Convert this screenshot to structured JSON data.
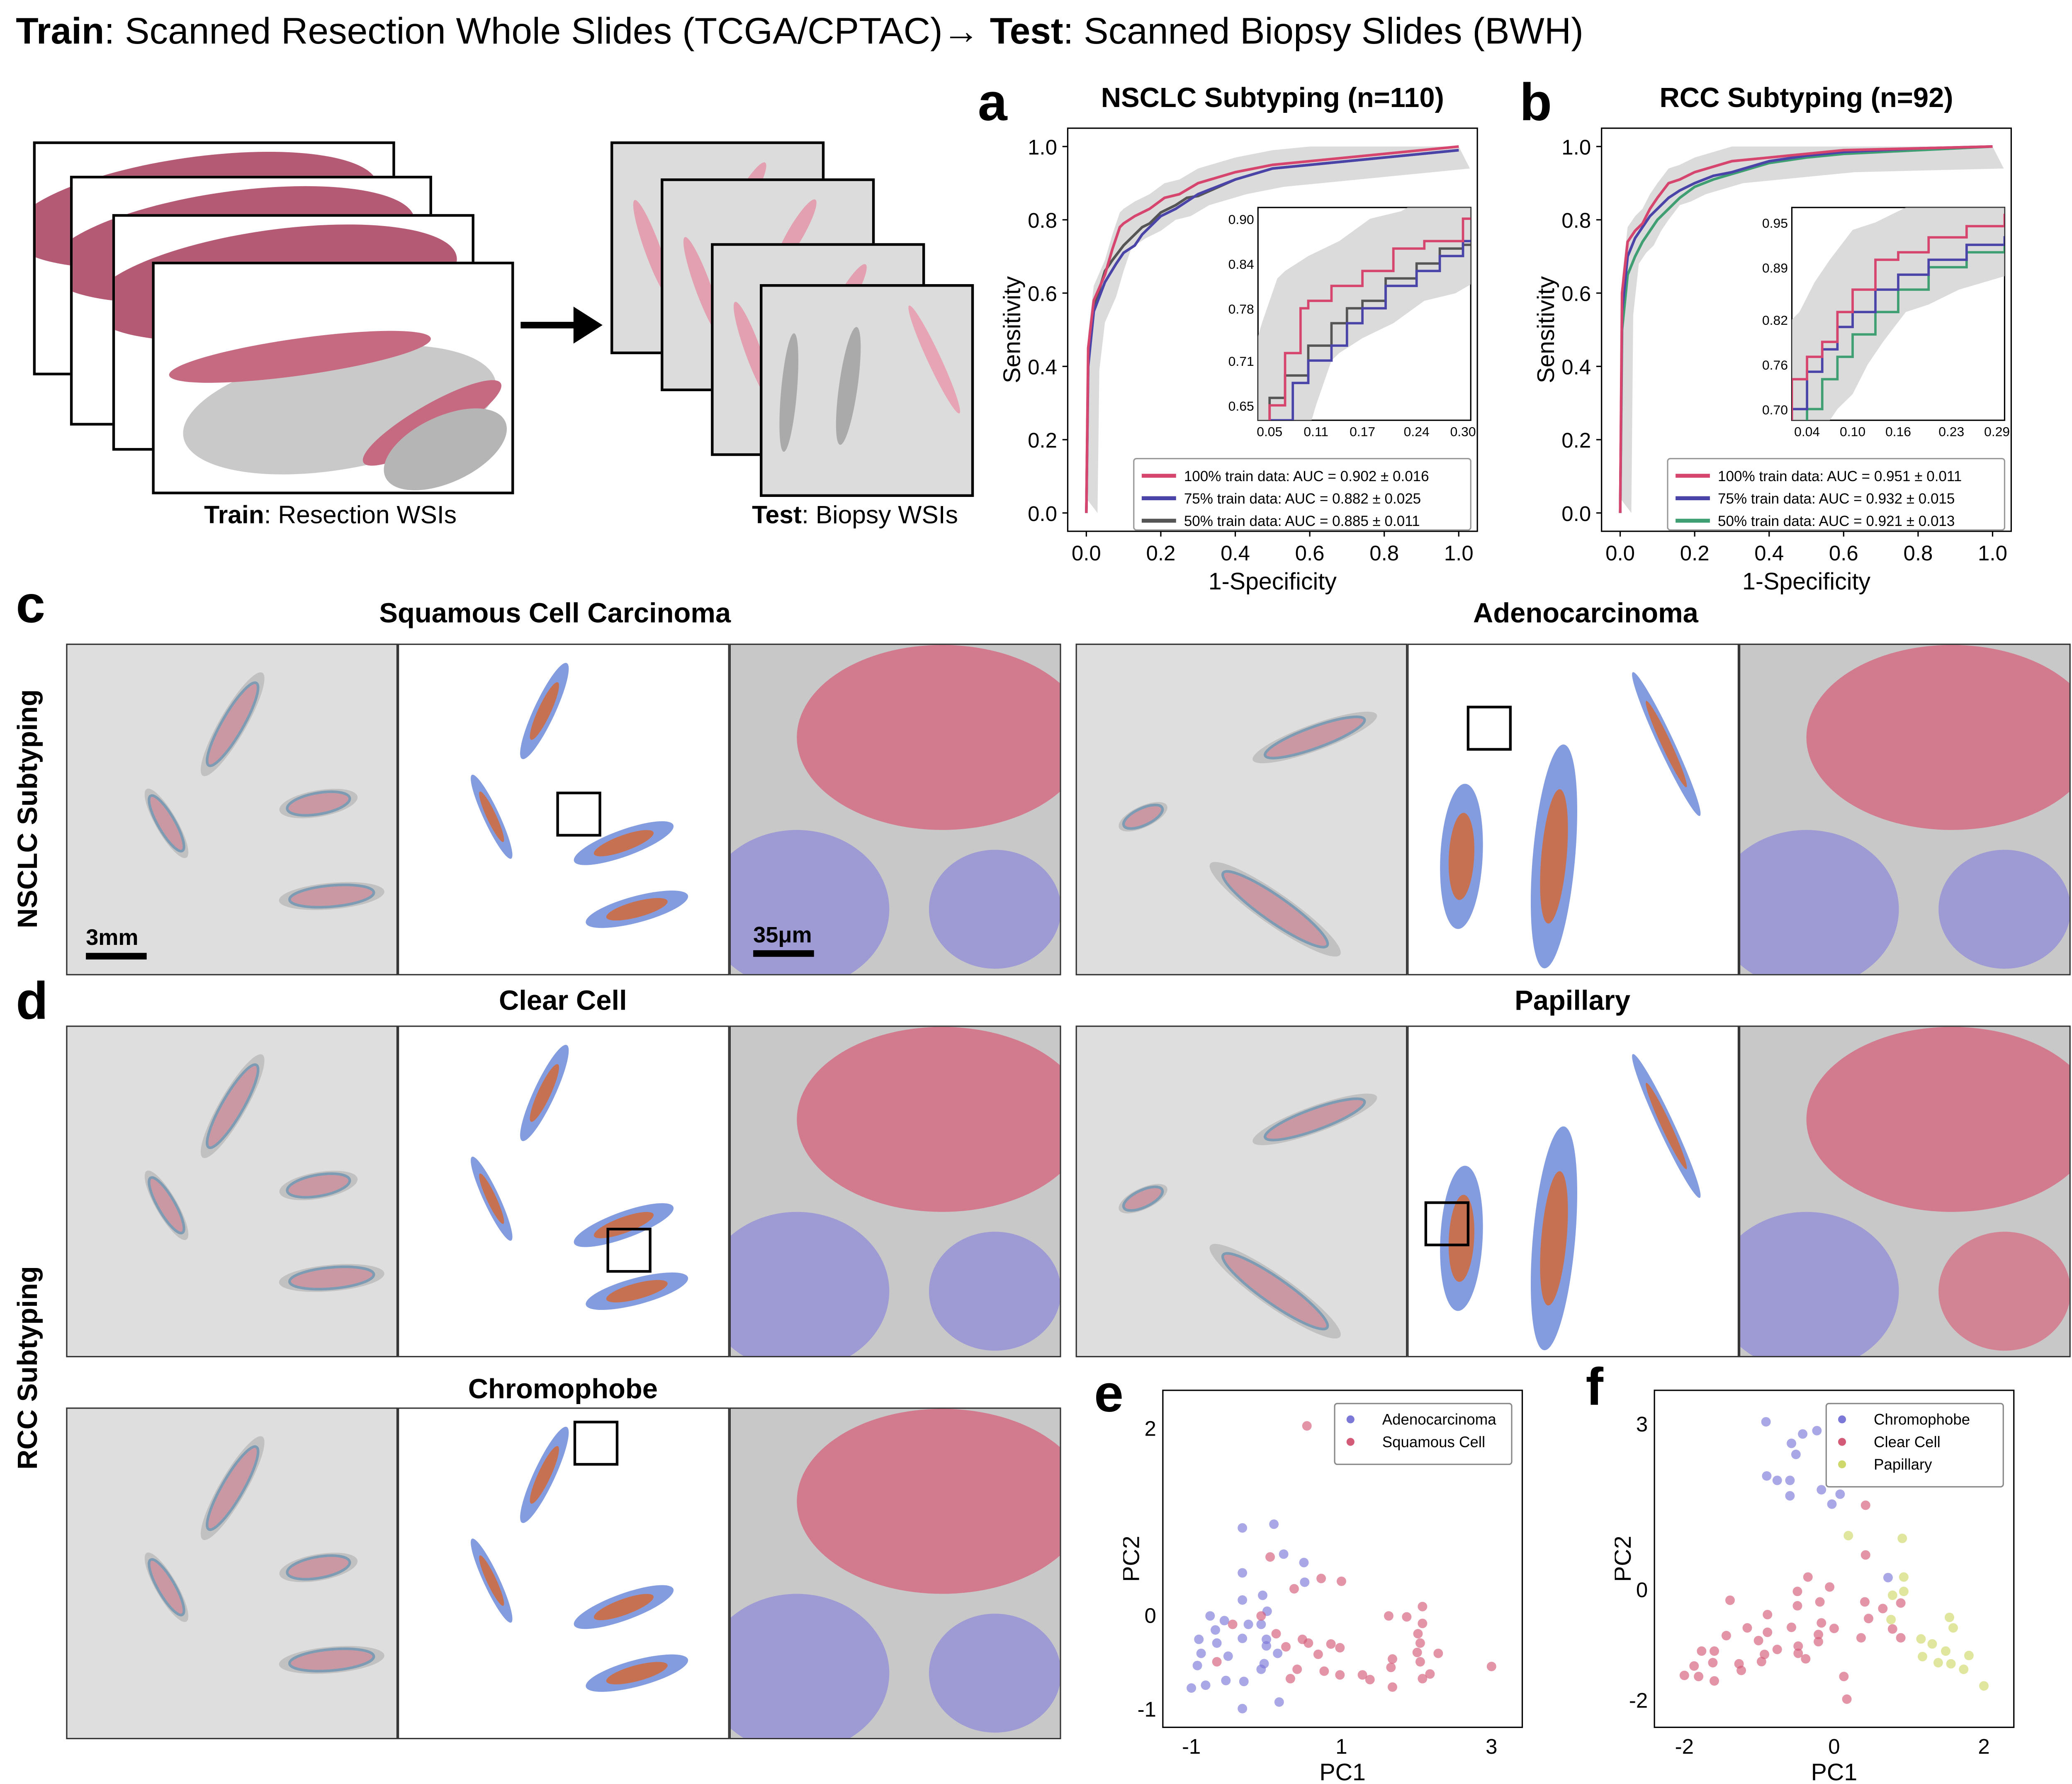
{
  "header": {
    "train_bold": "Train",
    "train_rest": ": Scanned Resection Whole Slides (TCGA/CPTAC)→ ",
    "test_bold": "Test",
    "test_rest": ": Scanned Biopsy Slides (BWH)"
  },
  "schematic": {
    "train_bold": "Train",
    "train_rest": ": Resection WSIs",
    "test_bold": "Test",
    "test_rest": ": Biopsy WSIs",
    "arrow_icon": "arrow-right-icon"
  },
  "panel_letters": {
    "a": "a",
    "b": "b",
    "c": "c",
    "d": "d",
    "e": "e",
    "f": "f"
  },
  "heatmaps": {
    "row_labels": {
      "nsclc": "NSCLC Subtyping",
      "rcc": "RCC Subtyping"
    },
    "titles": {
      "scc": "Squamous Cell Carcinoma",
      "adeno": "Adenocarcinoma",
      "clear": "Clear Cell",
      "papillary": "Papillary",
      "chromophobe": "Chromophobe"
    },
    "scale_bars": {
      "slide": "3mm",
      "zoom": "35μm"
    },
    "colors": {
      "tumor": "#d5677f",
      "normal": "#8b87d8",
      "tissue": "#b9b9b9",
      "contour": "#2f6fa6",
      "background": "#dedede"
    }
  },
  "chart_data": [
    {
      "id": "a",
      "type": "line",
      "title": "NSCLC Subtyping (n=110)",
      "xlabel": "1-Specificity",
      "ylabel": "Sensitivity",
      "xlim": [
        -0.05,
        1.05
      ],
      "ylim": [
        -0.05,
        1.05
      ],
      "xticks": [
        0.0,
        0.2,
        0.4,
        0.6,
        0.8,
        1.0
      ],
      "yticks": [
        0.0,
        0.2,
        0.4,
        0.6,
        0.8,
        1.0
      ],
      "tick_labels_x": [
        "0.0",
        "0.2",
        "0.4",
        "0.6",
        "0.8",
        "1.0"
      ],
      "tick_labels_y": [
        "0.0",
        "0.2",
        "0.4",
        "0.6",
        "0.8",
        "1.0"
      ],
      "legend_position": "lower-right",
      "confidence_band": true,
      "inset": {
        "xlim": [
          0.035,
          0.31
        ],
        "ylim": [
          0.63,
          0.915
        ],
        "xticks": [
          0.05,
          0.11,
          0.17,
          0.24,
          0.3
        ],
        "tick_labels_x": [
          "0.05",
          "0.11",
          "0.17",
          "0.24",
          "0.30"
        ],
        "yticks": [
          0.65,
          0.71,
          0.78,
          0.84,
          0.9
        ],
        "tick_labels_y": [
          "0.65",
          "0.71",
          "0.78",
          "0.84",
          "0.90"
        ]
      },
      "series": [
        {
          "name": "100% train data: AUC = 0.902 ± 0.016",
          "color": "#d6456e",
          "x": [
            0,
            0.005,
            0.02,
            0.05,
            0.07,
            0.09,
            0.1,
            0.13,
            0.17,
            0.21,
            0.25,
            0.3,
            0.4,
            0.5,
            0.6,
            0.8,
            1.0
          ],
          "y": [
            0,
            0.45,
            0.58,
            0.65,
            0.72,
            0.78,
            0.79,
            0.81,
            0.83,
            0.86,
            0.87,
            0.9,
            0.93,
            0.95,
            0.96,
            0.98,
            1.0
          ]
        },
        {
          "name": "75% train data: AUC = 0.882 ± 0.025",
          "color": "#4b44a8",
          "x": [
            0,
            0.005,
            0.02,
            0.05,
            0.08,
            0.1,
            0.13,
            0.15,
            0.17,
            0.2,
            0.24,
            0.27,
            0.3,
            0.4,
            0.5,
            0.6,
            0.8,
            1.0
          ],
          "y": [
            0,
            0.4,
            0.55,
            0.63,
            0.68,
            0.71,
            0.73,
            0.76,
            0.78,
            0.81,
            0.83,
            0.85,
            0.87,
            0.91,
            0.94,
            0.95,
            0.97,
            0.99
          ]
        },
        {
          "name": "50% train data: AUC = 0.885 ± 0.011",
          "color": "#555555",
          "x": [
            0,
            0.005,
            0.02,
            0.05,
            0.07,
            0.1,
            0.13,
            0.15,
            0.17,
            0.2,
            0.24,
            0.27,
            0.3,
            0.4,
            0.5,
            0.6,
            0.8,
            1.0
          ],
          "y": [
            0,
            0.42,
            0.56,
            0.66,
            0.69,
            0.73,
            0.76,
            0.78,
            0.79,
            0.82,
            0.84,
            0.86,
            0.865,
            0.91,
            0.94,
            0.95,
            0.97,
            0.99
          ]
        }
      ]
    },
    {
      "id": "b",
      "type": "line",
      "title": "RCC Subtyping (n=92)",
      "xlabel": "1-Specificity",
      "ylabel": "Sensitivity",
      "xlim": [
        -0.05,
        1.05
      ],
      "ylim": [
        -0.05,
        1.05
      ],
      "xticks": [
        0.0,
        0.2,
        0.4,
        0.6,
        0.8,
        1.0
      ],
      "yticks": [
        0.0,
        0.2,
        0.4,
        0.6,
        0.8,
        1.0
      ],
      "tick_labels_x": [
        "0.0",
        "0.2",
        "0.4",
        "0.6",
        "0.8",
        "1.0"
      ],
      "tick_labels_y": [
        "0.0",
        "0.2",
        "0.4",
        "0.6",
        "0.8",
        "1.0"
      ],
      "legend_position": "lower-right",
      "confidence_band": true,
      "inset": {
        "xlim": [
          0.02,
          0.3
        ],
        "ylim": [
          0.685,
          0.97
        ],
        "xticks": [
          0.04,
          0.1,
          0.16,
          0.23,
          0.29
        ],
        "tick_labels_x": [
          "0.04",
          "0.10",
          "0.16",
          "0.23",
          "0.29"
        ],
        "yticks": [
          0.7,
          0.76,
          0.82,
          0.89,
          0.95
        ],
        "tick_labels_y": [
          "0.70",
          "0.76",
          "0.82",
          "0.89",
          "0.95"
        ]
      },
      "series": [
        {
          "name": "100% train data: AUC = 0.951 ± 0.011",
          "color": "#d6456e",
          "x": [
            0,
            0.005,
            0.02,
            0.04,
            0.06,
            0.08,
            0.1,
            0.13,
            0.16,
            0.2,
            0.25,
            0.3,
            0.4,
            0.5,
            0.6,
            0.8,
            1.0
          ],
          "y": [
            0,
            0.6,
            0.74,
            0.77,
            0.79,
            0.83,
            0.86,
            0.9,
            0.91,
            0.93,
            0.945,
            0.96,
            0.97,
            0.98,
            0.99,
            0.995,
            1.0
          ]
        },
        {
          "name": "75% train data: AUC = 0.932 ± 0.015",
          "color": "#4b44a8",
          "x": [
            0,
            0.005,
            0.02,
            0.04,
            0.06,
            0.08,
            0.1,
            0.13,
            0.16,
            0.2,
            0.25,
            0.3,
            0.4,
            0.5,
            0.6,
            0.8,
            1.0
          ],
          "y": [
            0,
            0.55,
            0.7,
            0.75,
            0.78,
            0.81,
            0.83,
            0.86,
            0.88,
            0.9,
            0.92,
            0.93,
            0.96,
            0.975,
            0.985,
            0.995,
            1.0
          ]
        },
        {
          "name": "50% train data: AUC = 0.921 ± 0.013",
          "color": "#3f9e72",
          "x": [
            0,
            0.005,
            0.02,
            0.04,
            0.06,
            0.08,
            0.1,
            0.13,
            0.16,
            0.2,
            0.25,
            0.3,
            0.4,
            0.5,
            0.6,
            0.8,
            1.0
          ],
          "y": [
            0,
            0.5,
            0.65,
            0.7,
            0.74,
            0.77,
            0.8,
            0.83,
            0.86,
            0.89,
            0.91,
            0.925,
            0.955,
            0.97,
            0.98,
            0.99,
            1.0
          ]
        }
      ]
    },
    {
      "id": "e",
      "type": "scatter",
      "xlabel": "PC1",
      "ylabel": "PC2",
      "xlim": [
        -1.38,
        3.41
      ],
      "ylim": [
        -1.2,
        2.4
      ],
      "xticks": [
        -1,
        1,
        3
      ],
      "yticks": [
        -1,
        0,
        2
      ],
      "tick_labels_x": [
        "-1",
        "1",
        "3"
      ],
      "tick_labels_y": [
        "-1",
        "0",
        "2"
      ],
      "legend_position": "top-right",
      "series": [
        {
          "name": "Adenocarcinoma",
          "color": "#7b78d8",
          "points": [
            [
              -0.32,
              0.93
            ],
            [
              -0.32,
              0.45
            ],
            [
              -0.32,
              0.16
            ],
            [
              -0.75,
              -0.01
            ],
            [
              -0.56,
              -0.06
            ],
            [
              -0.68,
              -0.16
            ],
            [
              -0.9,
              -0.26
            ],
            [
              -0.66,
              -0.3
            ],
            [
              -0.32,
              -0.25
            ],
            [
              -0.87,
              -0.41
            ],
            [
              -0.51,
              -0.44
            ],
            [
              -0.92,
              -0.54
            ],
            [
              0.0,
              -0.26
            ],
            [
              0.0,
              -0.33
            ],
            [
              0.15,
              -0.41
            ],
            [
              -0.03,
              -0.52
            ],
            [
              -0.07,
              -0.58
            ],
            [
              -0.54,
              -0.7
            ],
            [
              -0.3,
              -0.71
            ],
            [
              -1.0,
              -0.78
            ],
            [
              -0.81,
              -0.75
            ],
            [
              0.17,
              -0.93
            ],
            [
              -0.32,
              -1.0
            ],
            [
              0.01,
              0.04
            ],
            [
              0.5,
              0.56
            ],
            [
              0.51,
              0.35
            ],
            [
              -0.24,
              -0.1
            ],
            [
              -0.07,
              -0.1
            ],
            [
              0.23,
              0.65
            ],
            [
              0.1,
              0.97
            ],
            [
              -0.05,
              0.21
            ]
          ]
        },
        {
          "name": "Squamous Cell",
          "color": "#d45b78",
          "points": [
            [
              0.54,
              2.02
            ],
            [
              0.05,
              0.62
            ],
            [
              0.37,
              0.28
            ],
            [
              0.73,
              0.39
            ],
            [
              1.0,
              0.36
            ],
            [
              -0.07,
              -0.01
            ],
            [
              2.08,
              0.09
            ],
            [
              1.63,
              -0.01
            ],
            [
              1.87,
              -0.02
            ],
            [
              2.08,
              -0.09
            ],
            [
              2.02,
              -0.2
            ],
            [
              2.05,
              -0.3
            ],
            [
              2.01,
              -0.4
            ],
            [
              2.29,
              -0.41
            ],
            [
              1.68,
              -0.47
            ],
            [
              2.05,
              -0.5
            ],
            [
              1.66,
              -0.56
            ],
            [
              2.18,
              -0.63
            ],
            [
              2.08,
              -0.68
            ],
            [
              1.68,
              -0.77
            ],
            [
              3.0,
              -0.55
            ],
            [
              1.28,
              -0.64
            ],
            [
              1.38,
              -0.69
            ],
            [
              0.98,
              -0.64
            ],
            [
              0.77,
              -0.6
            ],
            [
              0.69,
              -0.42
            ],
            [
              0.56,
              -0.3
            ],
            [
              0.48,
              -0.26
            ],
            [
              0.86,
              -0.31
            ],
            [
              0.98,
              -0.35
            ],
            [
              0.26,
              -0.34
            ],
            [
              0.41,
              -0.58
            ],
            [
              0.32,
              -0.68
            ],
            [
              0.13,
              -0.2
            ],
            [
              -0.45,
              -0.1
            ],
            [
              -0.66,
              -0.5
            ]
          ]
        }
      ]
    },
    {
      "id": "f",
      "type": "scatter",
      "xlabel": "PC1",
      "ylabel": "PC2",
      "xlim": [
        -2.4,
        2.4
      ],
      "ylim": [
        -2.5,
        3.6
      ],
      "xticks": [
        -2,
        0,
        2
      ],
      "yticks": [
        -2,
        0,
        3
      ],
      "tick_labels_x": [
        "-2",
        "0",
        "2"
      ],
      "tick_labels_y": [
        "-2",
        "0",
        "3"
      ],
      "legend_position": "top-right",
      "series": [
        {
          "name": "Chromophobe",
          "color": "#7b78d8",
          "points": [
            [
              -0.91,
              3.03
            ],
            [
              -0.42,
              2.81
            ],
            [
              -0.23,
              2.87
            ],
            [
              -0.57,
              2.64
            ],
            [
              -0.51,
              2.44
            ],
            [
              -0.9,
              2.05
            ],
            [
              -0.76,
              1.97
            ],
            [
              -0.59,
              1.97
            ],
            [
              -0.17,
              1.8
            ],
            [
              0.08,
              1.72
            ],
            [
              -0.59,
              1.69
            ],
            [
              -0.03,
              1.54
            ],
            [
              0.72,
              0.21
            ]
          ]
        },
        {
          "name": "Clear Cell",
          "color": "#d45b78",
          "points": [
            [
              0.42,
              1.52
            ],
            [
              0.42,
              0.62
            ],
            [
              -0.35,
              0.22
            ],
            [
              -0.06,
              0.04
            ],
            [
              -0.49,
              -0.04
            ],
            [
              -1.39,
              -0.2
            ],
            [
              -0.19,
              -0.23
            ],
            [
              0.41,
              -0.23
            ],
            [
              -0.49,
              -0.3
            ],
            [
              -0.89,
              -0.46
            ],
            [
              0.65,
              -0.35
            ],
            [
              0.46,
              -0.53
            ],
            [
              0.89,
              -0.25
            ],
            [
              -0.17,
              -0.61
            ],
            [
              -0.57,
              -0.69
            ],
            [
              0.0,
              -0.71
            ],
            [
              -1.16,
              -0.7
            ],
            [
              -0.89,
              -0.78
            ],
            [
              -1.44,
              -0.84
            ],
            [
              -0.21,
              -0.82
            ],
            [
              0.36,
              -0.88
            ],
            [
              0.78,
              -0.72
            ],
            [
              0.89,
              -0.88
            ],
            [
              -1.01,
              -0.93
            ],
            [
              -0.21,
              -0.95
            ],
            [
              -0.48,
              -1.03
            ],
            [
              -0.76,
              -1.09
            ],
            [
              -1.77,
              -1.12
            ],
            [
              -1.6,
              -1.12
            ],
            [
              -0.48,
              -1.16
            ],
            [
              -0.93,
              -1.18
            ],
            [
              -0.38,
              -1.26
            ],
            [
              -1.62,
              -1.33
            ],
            [
              -0.97,
              -1.31
            ],
            [
              -1.27,
              -1.35
            ],
            [
              -1.87,
              -1.39
            ],
            [
              -1.24,
              -1.47
            ],
            [
              -2.0,
              -1.56
            ],
            [
              -1.81,
              -1.58
            ],
            [
              -1.6,
              -1.66
            ],
            [
              0.13,
              -1.58
            ],
            [
              0.17,
              -1.99
            ]
          ]
        },
        {
          "name": "Papillary",
          "color": "#cfd86a",
          "points": [
            [
              0.19,
              0.97
            ],
            [
              0.91,
              0.92
            ],
            [
              0.93,
              0.22
            ],
            [
              0.93,
              -0.04
            ],
            [
              0.78,
              -0.11
            ],
            [
              0.76,
              -0.55
            ],
            [
              1.54,
              -0.51
            ],
            [
              1.59,
              -0.7
            ],
            [
              1.16,
              -0.9
            ],
            [
              1.31,
              -0.99
            ],
            [
              1.49,
              -1.12
            ],
            [
              1.8,
              -1.2
            ],
            [
              1.18,
              -1.22
            ],
            [
              1.56,
              -1.35
            ],
            [
              1.73,
              -1.45
            ],
            [
              2.0,
              -1.75
            ],
            [
              1.39,
              -1.33
            ]
          ]
        }
      ]
    }
  ]
}
